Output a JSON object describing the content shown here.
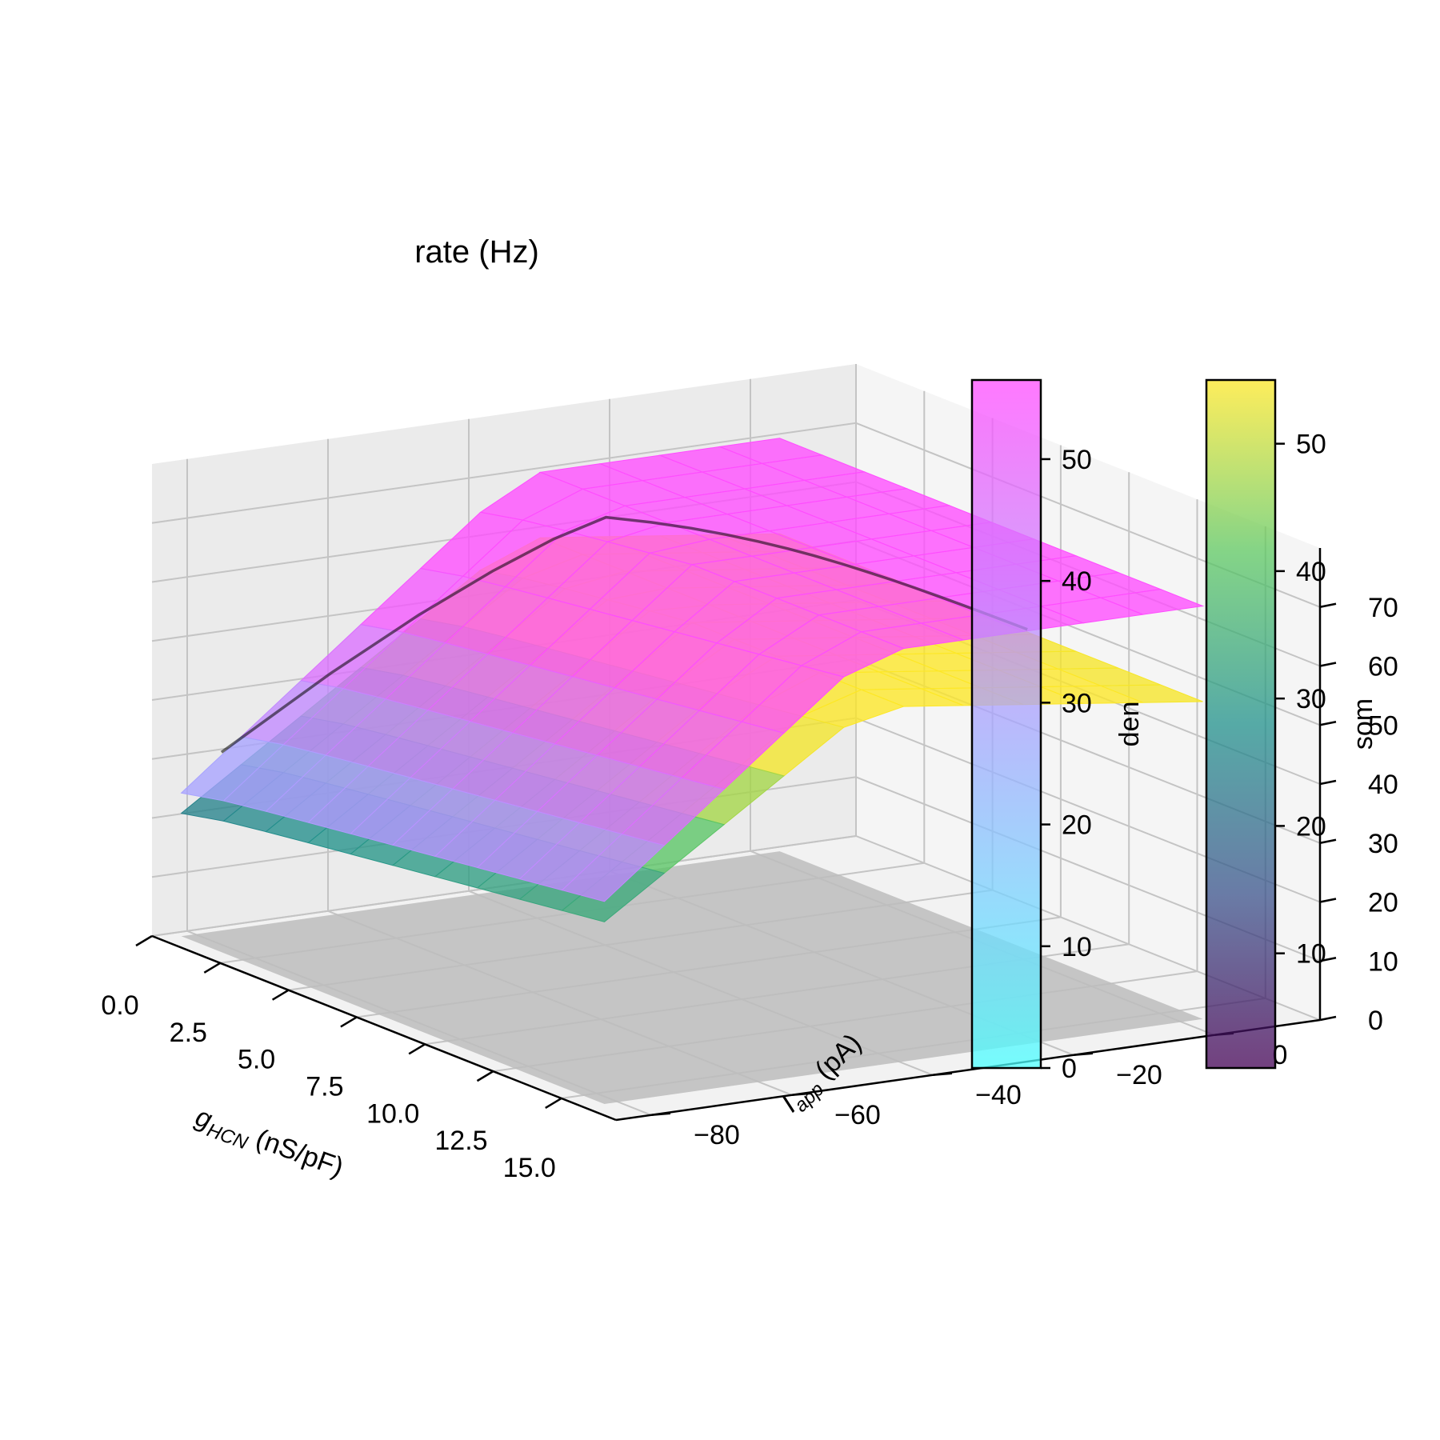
{
  "chart_data": {
    "type": "surface3d",
    "title": "rate (Hz)",
    "x_axis": {
      "label_symbol": "g",
      "label_sub": "HCN",
      "label_units": " (nS/pF)",
      "ticks": [
        "0.0",
        "2.5",
        "5.0",
        "7.5",
        "10.0",
        "12.5",
        "15.0"
      ],
      "range": [
        0,
        17
      ]
    },
    "y_axis": {
      "label_symbol": "I",
      "label_sub": "app",
      "label_units": " (pA)",
      "ticks": [
        "−80",
        "−60",
        "−40",
        "−20",
        "0"
      ],
      "range": [
        -85,
        15
      ]
    },
    "z_axis": {
      "label": "",
      "ticks": [
        "0",
        "10",
        "20",
        "30",
        "40",
        "50",
        "60",
        "70"
      ],
      "range": [
        0,
        80
      ]
    },
    "surfaces": [
      {
        "name": "den",
        "colormap": "cool",
        "alpha": 0.7,
        "approx_range": [
          0,
          56
        ]
      },
      {
        "name": "som",
        "colormap": "viridis",
        "alpha": 0.7,
        "approx_range": [
          1,
          55
        ]
      }
    ],
    "colorbars": [
      {
        "label": "den",
        "colors": [
          "#4cffff",
          "#ff4cff"
        ],
        "ticks": [
          "0",
          "10",
          "20",
          "30",
          "40",
          "50"
        ],
        "vmin": 0,
        "vmax": 56.5
      },
      {
        "label": "som",
        "colors": [
          "#440154",
          "#3b528b",
          "#21918c",
          "#5ec962",
          "#fde725"
        ],
        "ticks": [
          "10",
          "20",
          "30",
          "40",
          "50"
        ],
        "vmin": 1,
        "vmax": 55
      }
    ],
    "shadow_color": "#bdbdbd",
    "contour_color": "#000000",
    "grid": true
  }
}
